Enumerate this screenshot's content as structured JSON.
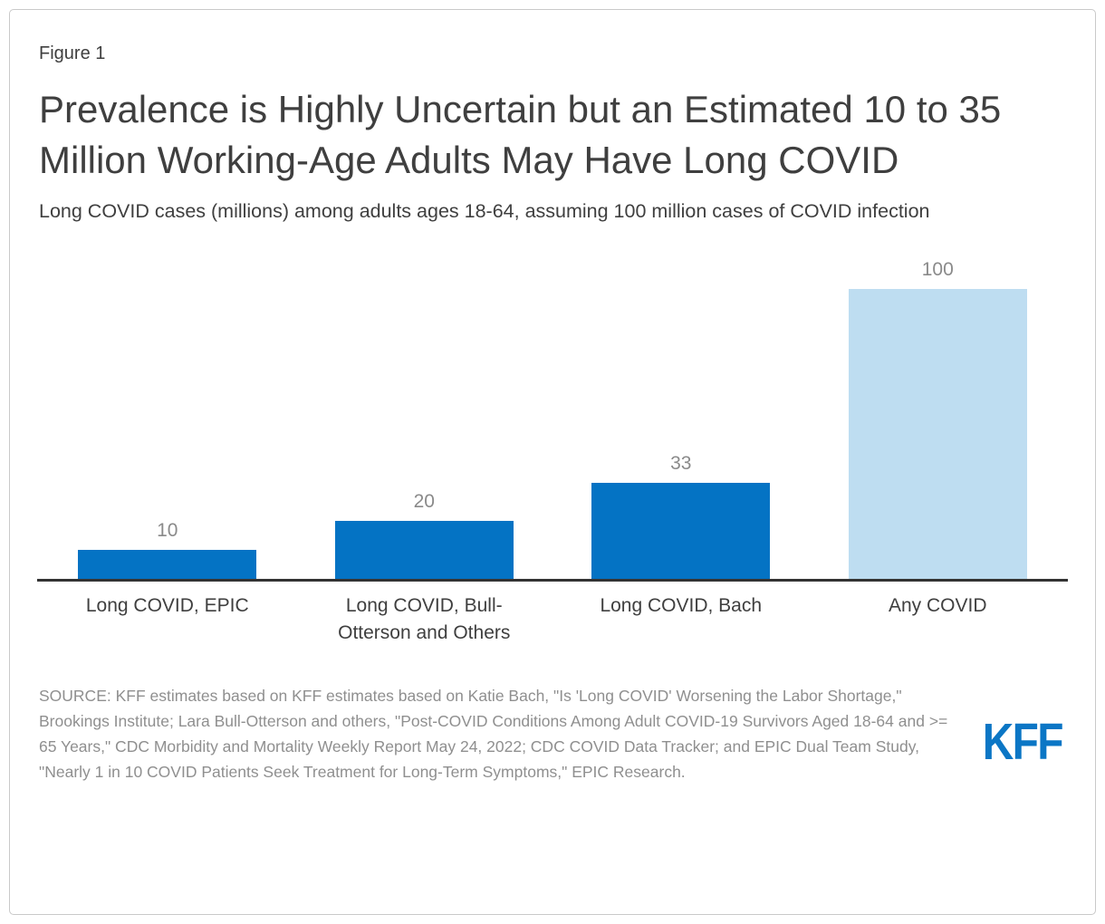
{
  "figure": {
    "label": "Figure 1",
    "title": "Prevalence is Highly Uncertain but an Estimated 10 to 35 Million Working-Age Adults May Have Long COVID",
    "subtitle": "Long COVID cases (millions) among adults ages 18-64, assuming 100 million cases of COVID infection"
  },
  "chart_data": {
    "type": "bar",
    "title": "Prevalence is Highly Uncertain but an Estimated 10 to 35 Million Working-Age Adults May Have Long COVID",
    "subtitle": "Long COVID cases (millions) among adults ages 18-64, assuming 100 million cases of COVID infection",
    "categories": [
      "Long COVID, EPIC",
      "Long COVID, Bull-Otterson and Others",
      "Long COVID, Bach",
      "Any COVID"
    ],
    "values": [
      10,
      20,
      33,
      100
    ],
    "data_labels": [
      "10",
      "20",
      "33",
      "100"
    ],
    "bar_colors": [
      "#0473C4",
      "#0473C4",
      "#0473C4",
      "#BEDDF1"
    ],
    "xlabel": "",
    "ylabel": "",
    "ylim": [
      0,
      115
    ],
    "grid": false,
    "legend": false
  },
  "footer": {
    "source": "SOURCE: KFF estimates based on KFF estimates based on Katie Bach, \"Is 'Long COVID' Worsening the Labor Shortage,\" Brookings Institute; Lara Bull-Otterson and others, \"Post-COVID Conditions Among Adult COVID-19 Survivors Aged 18-64 and >= 65 Years,\" CDC Morbidity and Mortality Weekly Report May 24, 2022; CDC COVID Data Tracker; and EPIC Dual Team Study, \"Nearly 1 in 10 COVID Patients Seek Treatment for Long-Term Symptoms,\" EPIC Research.",
    "logo": "KFF"
  },
  "colors": {
    "bar_primary": "#0473C4",
    "bar_light": "#BEDDF1",
    "axis": "#333333",
    "text_dark": "#3F3F3F",
    "value_label": "#8A8A8A",
    "source_text": "#8F8F8F",
    "card_border": "#C9C9C9",
    "logo_blue": "#0B76C5"
  }
}
